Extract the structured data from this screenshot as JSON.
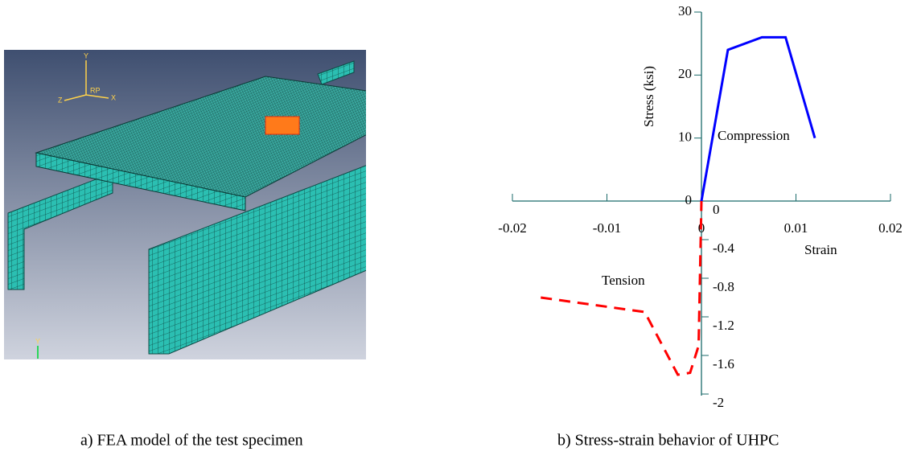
{
  "figure_a": {
    "caption": "a)  FEA model of the test specimen",
    "labels": [
      "Y",
      "Z",
      "RP",
      "X",
      "Y"
    ]
  },
  "chart_data": {
    "type": "line",
    "caption": "b)  Stress-strain behavior of UHPC",
    "ylabel": "Stress (ksi)",
    "xlabel": "Strain",
    "annotations": [
      "Compression",
      "Tension"
    ],
    "xlim": [
      -0.02,
      0.02
    ],
    "xticks": [
      -0.02,
      -0.01,
      0,
      0.01,
      0.02
    ],
    "ylim": [
      0,
      30
    ],
    "yticks": [
      0,
      10,
      20,
      30
    ],
    "y2lim": [
      -2,
      0
    ],
    "y2ticks": [
      0,
      -0.4,
      -0.8,
      -1.2,
      -1.6,
      -2
    ],
    "series": [
      {
        "color": "#0000ff",
        "dash": false,
        "x": [
          0,
          0.0028,
          0.0064,
          0.0089,
          0.012
        ],
        "values": [
          0,
          24,
          26,
          26,
          10
        ]
      },
      {
        "color": "#ff0000",
        "dash": true,
        "axis": "y2",
        "x": [
          -0.017,
          -0.006,
          -0.0025,
          -0.0012,
          -0.0003,
          0
        ],
        "values": [
          -1.0,
          -1.15,
          -1.8,
          -1.78,
          -1.5,
          0
        ]
      }
    ]
  }
}
